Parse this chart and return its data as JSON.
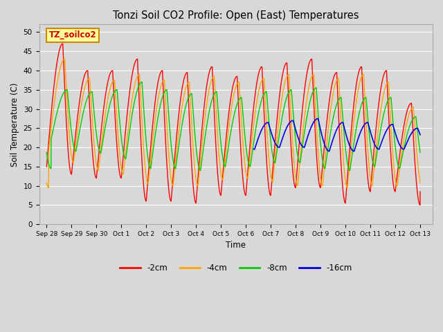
{
  "title": "Tonzi Soil CO2 Profile: Open (East) Temperatures",
  "xlabel": "Time",
  "ylabel": "Soil Temperature (C)",
  "ylim": [
    0,
    52
  ],
  "annotation_text": "TZ_soilco2",
  "legend_entries": [
    "-2cm",
    "-4cm",
    "-8cm",
    "-16cm"
  ],
  "legend_colors": [
    "#ff0000",
    "#ffa500",
    "#00cc00",
    "#0000dd"
  ],
  "background_color": "#d8d8d8",
  "plot_bg_color": "#d8d8d8",
  "tick_labels": [
    "Sep 28",
    "Sep 29",
    "Sep 30",
    "Oct 1",
    "Oct 2",
    "Oct 3",
    "Oct 4",
    "Oct 5",
    "Oct 6",
    "Oct 7",
    "Oct 8",
    "Oct 9",
    "Oct 10",
    "Oct 11",
    "Oct 12",
    "Oct 13"
  ],
  "annotation_box_color": "#ffff99",
  "annotation_border_color": "#cc8800"
}
